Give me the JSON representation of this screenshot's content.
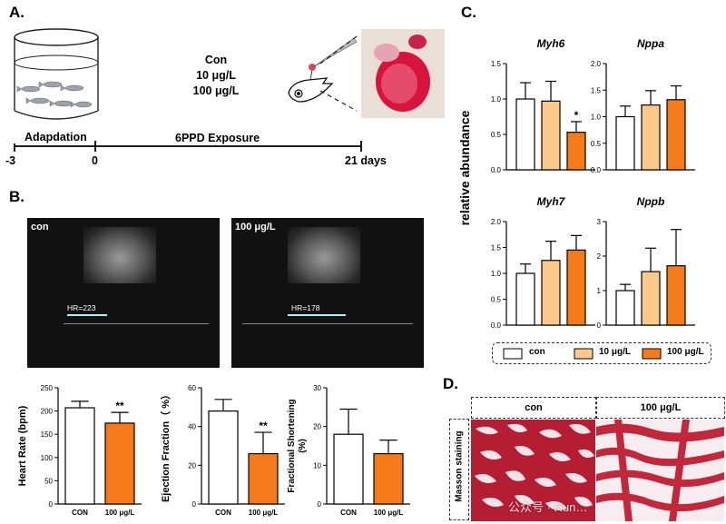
{
  "panels": {
    "A": "A.",
    "B": "B.",
    "C": "C.",
    "D": "D."
  },
  "panel_a": {
    "conditions": [
      "Con",
      "10 μg/L",
      "100 μg/L"
    ],
    "adaptation_label": "Adapdation",
    "exposure_label": "6PPD Exposure",
    "timeline": {
      "start": "-3",
      "zero": "0",
      "end": "21 days"
    }
  },
  "panel_b": {
    "us_con": {
      "label": "con",
      "hr": "HR=223"
    },
    "us_treat": {
      "label": "100 μg/L",
      "hr": "HR=178"
    }
  },
  "panel_d": {
    "col_con": "con",
    "col_treat": "100 μg/L",
    "row_label": "Masson staining",
    "watermark": "公众号 · Hun…"
  },
  "colors": {
    "con": "#ffffff",
    "low": "#fdc98b",
    "high": "#f47a1a",
    "stain_red": "#c2273a",
    "stain_bg": "#f7e9ee"
  },
  "chart_data": [
    {
      "id": "heart-rate",
      "type": "bar",
      "categories": [
        "CON",
        "100 μg/L"
      ],
      "values": [
        207,
        174
      ],
      "errors": [
        14,
        23
      ],
      "ylabel": "Heart Rate (bpm)",
      "ylim": [
        0,
        250
      ],
      "yticks": [
        0,
        50,
        100,
        150,
        200,
        250
      ],
      "fills": [
        "#ffffff",
        "#f47a1a"
      ],
      "sig": [
        "",
        "**"
      ]
    },
    {
      "id": "ejection-fraction",
      "type": "bar",
      "categories": [
        "CON",
        "100 μg/L"
      ],
      "values": [
        48,
        26
      ],
      "errors": [
        6,
        11
      ],
      "ylabel": "Ejection Fraction（ %）",
      "ylim": [
        0,
        60
      ],
      "yticks": [
        0,
        20,
        40,
        60
      ],
      "fills": [
        "#ffffff",
        "#f47a1a"
      ],
      "sig": [
        "",
        "**"
      ]
    },
    {
      "id": "fractional-shortening",
      "type": "bar",
      "categories": [
        "CON",
        "100 μg/L"
      ],
      "values": [
        18,
        13
      ],
      "errors": [
        6.5,
        3.5
      ],
      "ylabel": "Fractional Shortening (%)",
      "ylim": [
        0,
        30
      ],
      "yticks": [
        0,
        10,
        20,
        30
      ],
      "fills": [
        "#ffffff",
        "#f47a1a"
      ],
      "sig": [
        "",
        ""
      ]
    },
    {
      "id": "myh6",
      "type": "bar",
      "title": "Myh6",
      "categories": [
        "con",
        "10 μg/L",
        "100 μg/L"
      ],
      "values": [
        1.0,
        0.97,
        0.53
      ],
      "errors": [
        0.23,
        0.28,
        0.15
      ],
      "ylim": [
        0,
        1.5
      ],
      "yticks": [
        "0.0",
        "0.5",
        "1.0",
        "1.5"
      ],
      "fills": [
        "#ffffff",
        "#fdc98b",
        "#f47a1a"
      ],
      "sig": [
        "",
        "",
        "*"
      ]
    },
    {
      "id": "nppa",
      "type": "bar",
      "title": "Nppa",
      "categories": [
        "con",
        "10 μg/L",
        "100 μg/L"
      ],
      "values": [
        1.0,
        1.22,
        1.32
      ],
      "errors": [
        0.2,
        0.27,
        0.26
      ],
      "ylim": [
        0,
        2.0
      ],
      "yticks": [
        "0.0",
        "0.5",
        "1.0",
        "1.5",
        "2.0"
      ],
      "fills": [
        "#ffffff",
        "#fdc98b",
        "#f47a1a"
      ],
      "sig": [
        "",
        "",
        ""
      ]
    },
    {
      "id": "myh7",
      "type": "bar",
      "title": "Myh7",
      "categories": [
        "con",
        "10 μg/L",
        "100 μg/L"
      ],
      "values": [
        1.0,
        1.25,
        1.45
      ],
      "errors": [
        0.18,
        0.37,
        0.28
      ],
      "ylim": [
        0,
        2.0
      ],
      "yticks": [
        "0.0",
        "0.5",
        "1.0",
        "1.5",
        "2.0"
      ],
      "fills": [
        "#ffffff",
        "#fdc98b",
        "#f47a1a"
      ],
      "sig": [
        "",
        "",
        ""
      ]
    },
    {
      "id": "nppb",
      "type": "bar",
      "title": "Nppb",
      "categories": [
        "con",
        "10 μg/L",
        "100 μg/L"
      ],
      "values": [
        1.0,
        1.55,
        1.72
      ],
      "errors": [
        0.18,
        0.68,
        1.05
      ],
      "ylim": [
        0,
        3
      ],
      "yticks": [
        "0",
        "1",
        "2",
        "3"
      ],
      "fills": [
        "#ffffff",
        "#fdc98b",
        "#f47a1a"
      ],
      "sig": [
        "",
        "",
        ""
      ]
    }
  ],
  "panel_c": {
    "ylabel": "relative abundance",
    "legend": [
      "con",
      "10 μg/L",
      "100 μg/L"
    ]
  }
}
